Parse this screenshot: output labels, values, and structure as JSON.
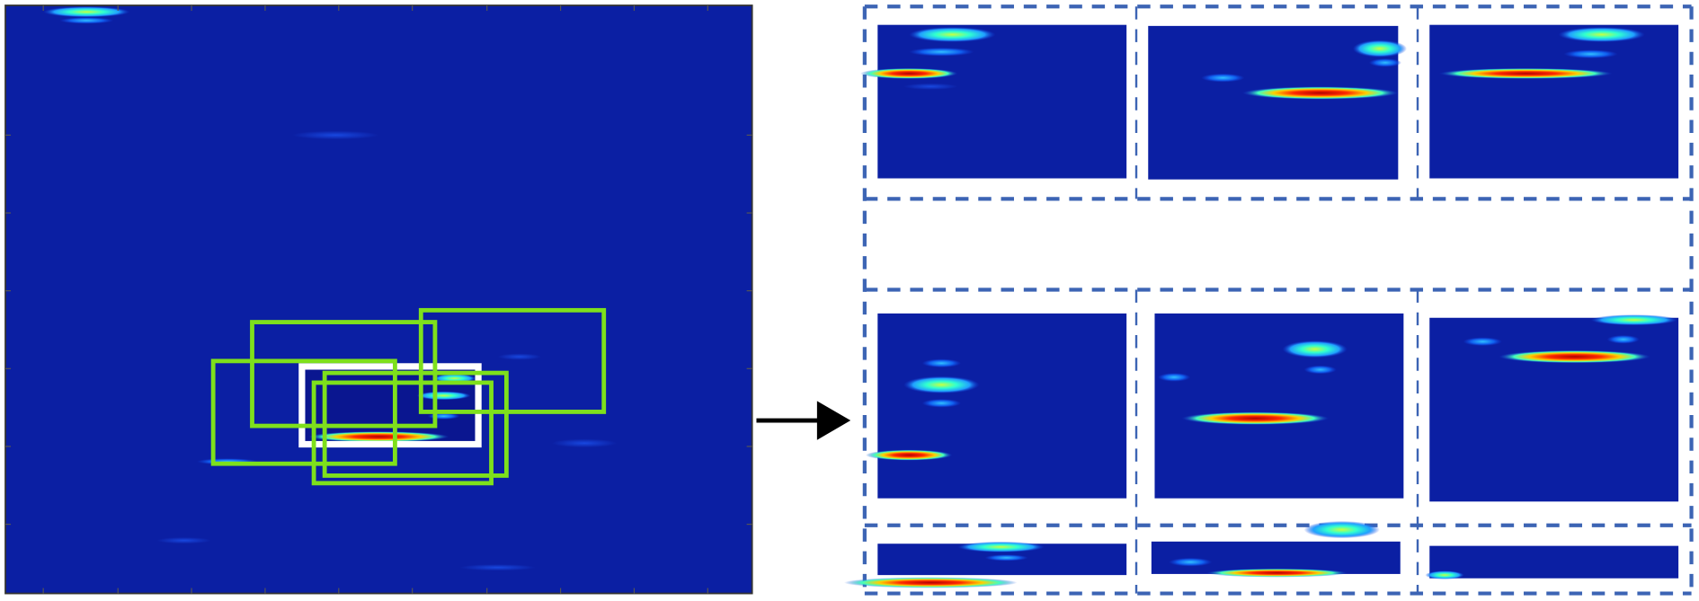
{
  "colors": {
    "heatmap_background": "#0b1fa3",
    "proposal_box": "#7ee01c",
    "target_box": "#ffffff",
    "dashed_group": "#3c64b4",
    "arrow": "#000000"
  },
  "icons": {
    "arrow": "arrow-right-icon"
  }
}
